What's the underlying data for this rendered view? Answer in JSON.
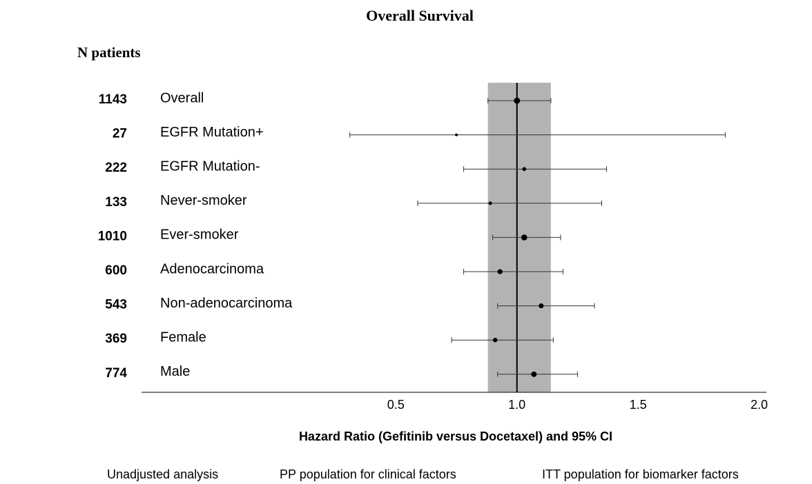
{
  "chart_data": {
    "type": "forest",
    "title": "Overall Survival",
    "n_header": "N patients",
    "categories": [
      "Overall",
      "EGFR Mutation+",
      "EGFR Mutation-",
      "Never-smoker",
      "Ever-smoker",
      "Adenocarcinoma",
      "Non-adenocarcinoma",
      "Female",
      "Male"
    ],
    "n": [
      1143,
      27,
      222,
      133,
      1010,
      600,
      543,
      369,
      774
    ],
    "values": [
      1.0,
      0.75,
      1.03,
      0.89,
      1.03,
      0.93,
      1.1,
      0.91,
      1.07
    ],
    "lower": [
      0.88,
      0.31,
      0.78,
      0.59,
      0.9,
      0.78,
      0.92,
      0.73,
      0.92
    ],
    "upper": [
      1.14,
      1.86,
      1.37,
      1.35,
      1.18,
      1.19,
      1.32,
      1.15,
      1.25
    ],
    "xlim": [
      -0.55,
      2.03
    ],
    "xticks": [
      0.5,
      {
        "value": 1,
        "label": "1.0"
      },
      1.5,
      {
        "value": 2,
        "label": "2.0"
      }
    ],
    "reference_line": 1,
    "xlabel": "Hazard Ratio (Gefitinib versus Docetaxel) and 95% CI",
    "notes": [
      "Unadjusted analysis",
      "PP population for clinical factors",
      "ITT population for biomarker factors"
    ],
    "band_color": "#b3b3b3",
    "color": "#000000"
  }
}
